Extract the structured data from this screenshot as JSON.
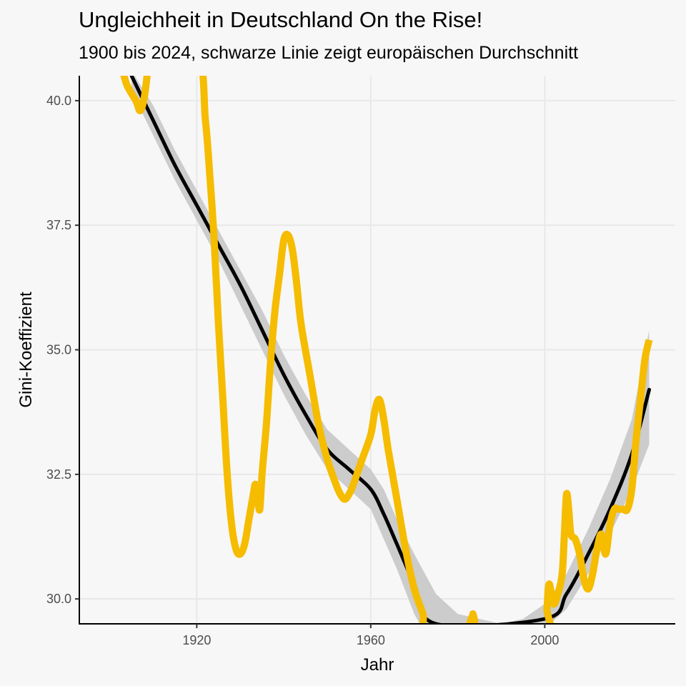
{
  "chart_data": {
    "type": "line",
    "title": "Ungleichheit in Deutschland On the Rise!",
    "subtitle": "1900 bis 2024, schwarze Linie zeigt europäischen Durchschnitt",
    "xlabel": "Jahr",
    "ylabel": "Gini-Koeffizient",
    "xlim": [
      1893,
      2030
    ],
    "ylim": [
      29.5,
      40.5
    ],
    "x_ticks": [
      1920,
      1960,
      2000
    ],
    "y_ticks": [
      30.0,
      32.5,
      35.0,
      37.5,
      40.0
    ],
    "y_tick_labels": [
      "30.0",
      "32.5",
      "35.0",
      "37.5",
      "40.0"
    ],
    "grid": true,
    "colors": {
      "germany": "#f5bc00",
      "europe": "#000000",
      "ribbon": "#cccccc",
      "grid": "#e8e8e8",
      "background": "#f7f7f7"
    },
    "series": [
      {
        "key": "germany",
        "values": [
          [
            1900,
            41.5
          ],
          [
            1902,
            41.0
          ],
          [
            1903,
            40.6
          ],
          [
            1904,
            40.3
          ],
          [
            1906,
            40.0
          ],
          [
            1907,
            39.8
          ],
          [
            1908,
            40.1
          ],
          [
            1909,
            40.8
          ],
          [
            1910,
            41.2
          ],
          [
            1920,
            41.0
          ],
          [
            1922,
            39.6
          ],
          [
            1923,
            38.5
          ],
          [
            1924,
            37.2
          ],
          [
            1925,
            35.5
          ],
          [
            1926,
            34.0
          ],
          [
            1927,
            32.5
          ],
          [
            1928,
            31.5
          ],
          [
            1929,
            31.0
          ],
          [
            1930,
            30.9
          ],
          [
            1931,
            31.1
          ],
          [
            1932,
            31.6
          ],
          [
            1933,
            32.1
          ],
          [
            1933.5,
            32.3
          ],
          [
            1934,
            32.0
          ],
          [
            1934.5,
            31.8
          ],
          [
            1935,
            32.5
          ],
          [
            1936,
            33.5
          ],
          [
            1937,
            34.8
          ],
          [
            1938,
            35.8
          ],
          [
            1939,
            36.5
          ],
          [
            1940,
            37.2
          ],
          [
            1941,
            37.3
          ],
          [
            1942,
            37.0
          ],
          [
            1943,
            36.3
          ],
          [
            1944,
            35.5
          ],
          [
            1946,
            34.5
          ],
          [
            1948,
            33.5
          ],
          [
            1950,
            32.8
          ],
          [
            1952,
            32.3
          ],
          [
            1953,
            32.1
          ],
          [
            1954,
            32.0
          ],
          [
            1955,
            32.1
          ],
          [
            1956,
            32.3
          ],
          [
            1958,
            32.8
          ],
          [
            1960,
            33.3
          ],
          [
            1961,
            33.8
          ],
          [
            1962,
            34.0
          ],
          [
            1963,
            33.6
          ],
          [
            1964,
            33.0
          ],
          [
            1966,
            32.0
          ],
          [
            1968,
            31.0
          ],
          [
            1970,
            30.2
          ],
          [
            1972,
            29.7
          ],
          [
            1973,
            29.4
          ],
          [
            1983,
            29.4
          ],
          [
            1983.5,
            29.7
          ],
          [
            1984,
            29.3
          ],
          [
            2000,
            29.3
          ],
          [
            2000.5,
            29.8
          ],
          [
            2001,
            30.3
          ],
          [
            2002,
            29.9
          ],
          [
            2003,
            30.1
          ],
          [
            2004,
            30.5
          ],
          [
            2004.5,
            31.3
          ],
          [
            2005,
            32.1
          ],
          [
            2005.5,
            31.8
          ],
          [
            2006,
            31.3
          ],
          [
            2007,
            31.2
          ],
          [
            2008,
            30.9
          ],
          [
            2009,
            30.4
          ],
          [
            2010,
            30.2
          ],
          [
            2011,
            30.5
          ],
          [
            2012,
            31.0
          ],
          [
            2013,
            31.3
          ],
          [
            2014,
            30.9
          ],
          [
            2015,
            31.5
          ],
          [
            2016,
            31.8
          ],
          [
            2017,
            31.8
          ],
          [
            2018,
            31.8
          ],
          [
            2019,
            31.8
          ],
          [
            2020,
            32.2
          ],
          [
            2021,
            33.2
          ],
          [
            2022,
            34.0
          ],
          [
            2023,
            34.8
          ],
          [
            2024,
            35.2
          ]
        ]
      },
      {
        "key": "europe",
        "values": [
          [
            1905,
            40.5
          ],
          [
            1910,
            39.6
          ],
          [
            1915,
            38.7
          ],
          [
            1920,
            37.9
          ],
          [
            1925,
            37.1
          ],
          [
            1930,
            36.3
          ],
          [
            1935,
            35.4
          ],
          [
            1940,
            34.5
          ],
          [
            1945,
            33.7
          ],
          [
            1950,
            33.0
          ],
          [
            1955,
            32.6
          ],
          [
            1960,
            32.2
          ],
          [
            1963,
            31.7
          ],
          [
            1966,
            31.1
          ],
          [
            1970,
            30.3
          ],
          [
            1975,
            29.5
          ],
          [
            2000,
            29.6
          ],
          [
            2005,
            30.1
          ],
          [
            2010,
            30.9
          ],
          [
            2015,
            31.8
          ],
          [
            2020,
            32.9
          ],
          [
            2024,
            34.2
          ]
        ],
        "band": [
          [
            1905,
            40.6,
            40.2
          ],
          [
            1910,
            39.9,
            39.3
          ],
          [
            1915,
            39.0,
            38.4
          ],
          [
            1920,
            38.2,
            37.6
          ],
          [
            1925,
            37.4,
            36.8
          ],
          [
            1930,
            36.6,
            35.9
          ],
          [
            1935,
            35.8,
            35.0
          ],
          [
            1940,
            34.9,
            34.1
          ],
          [
            1945,
            34.1,
            33.3
          ],
          [
            1950,
            33.4,
            32.6
          ],
          [
            1955,
            33.0,
            32.2
          ],
          [
            1960,
            32.6,
            31.8
          ],
          [
            1963,
            32.2,
            31.2
          ],
          [
            1966,
            31.6,
            30.6
          ],
          [
            1970,
            30.9,
            29.7
          ],
          [
            1975,
            30.1,
            28.9
          ],
          [
            1980,
            29.7,
            28.6
          ],
          [
            1990,
            29.5,
            28.8
          ],
          [
            1995,
            29.6,
            29.1
          ],
          [
            2000,
            29.9,
            29.4
          ],
          [
            2005,
            30.5,
            29.8
          ],
          [
            2010,
            31.4,
            30.5
          ],
          [
            2015,
            32.4,
            31.3
          ],
          [
            2020,
            33.6,
            32.2
          ],
          [
            2024,
            35.4,
            33.1
          ]
        ]
      }
    ]
  }
}
